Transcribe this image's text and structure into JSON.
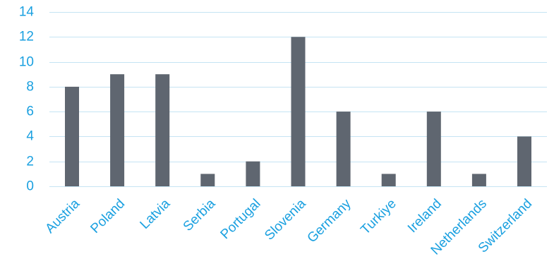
{
  "chart_data": {
    "type": "bar",
    "title": "",
    "xlabel": "",
    "ylabel": "",
    "categories": [
      "Austria",
      "Poland",
      "Latvia",
      "Serbia",
      "Portugal",
      "Slovenia",
      "Germany",
      "Turkiye",
      "Ireland",
      "Netherlands",
      "Switzerland"
    ],
    "values": [
      8,
      9,
      9,
      1,
      2,
      12,
      6,
      1,
      6,
      1,
      4
    ],
    "ylim": [
      0,
      14
    ],
    "yticks": [
      0,
      2,
      4,
      6,
      8,
      10,
      12,
      14
    ],
    "grid": "horizontal",
    "legend": "none",
    "colors": {
      "bar": "#5f6670",
      "grid": "#c5e4f3",
      "axis": "#c5e4f3",
      "tick_text": "#1aa0e0"
    }
  }
}
